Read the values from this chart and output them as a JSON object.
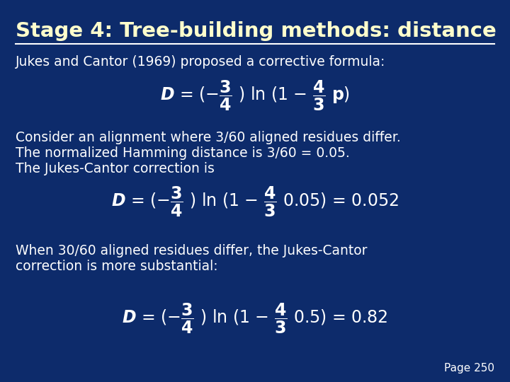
{
  "bg_color": "#0d2b6b",
  "title_text": "Stage 4: Tree-building methods: distance",
  "title_color": "#ffffcc",
  "title_fontsize": 21,
  "line_color": "#ffffff",
  "text_color": "#ffffff",
  "body_fontsize": 13.5,
  "formula_fontsize": 17,
  "page_text": "Page 250",
  "intro_text": "Jukes and Cantor (1969) proposed a corrective formula:",
  "body1_lines": [
    "Consider an alignment where 3/60 aligned residues differ.",
    "The normalized Hamming distance is 3/60 = 0.05.",
    "The Jukes-Cantor correction is"
  ],
  "body2_lines": [
    "When 30/60 aligned residues differ, the Jukes-Cantor",
    "correction is more substantial:"
  ]
}
